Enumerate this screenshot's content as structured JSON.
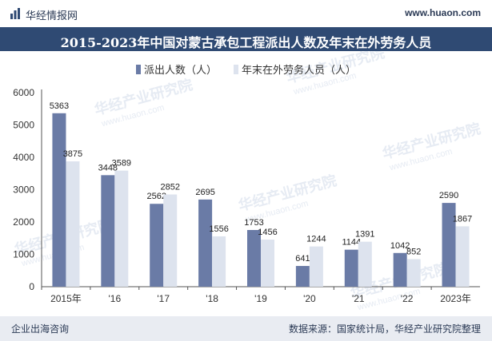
{
  "header": {
    "site_name": "华经情报网",
    "site_url": "www.huaon.com",
    "logo_icon": "bar-logo-icon"
  },
  "footer": {
    "left": "企业出海咨询",
    "right": "数据来源：国家统计局，华经产业研究院整理"
  },
  "watermark": {
    "text": "华经产业研究院",
    "url": "www.huaon.com"
  },
  "colors": {
    "series1": "#6a7ba6",
    "series2": "#dde3ee",
    "title_bg": "#2f4a73"
  },
  "chart_data": {
    "type": "bar",
    "title": "2015-2023年中国对蒙古承包工程派出人数及年末在外劳务人员",
    "categories": [
      "2015年",
      "'16",
      "'17",
      "'18",
      "'19",
      "'20",
      "'21",
      "'22",
      "2023年"
    ],
    "series": [
      {
        "name": "派出人数（人）",
        "values": [
          5363,
          3448,
          2562,
          2695,
          1753,
          641,
          1144,
          1042,
          2590
        ]
      },
      {
        "name": "年末在外劳务人员（人）",
        "values": [
          3875,
          3589,
          2852,
          1556,
          1456,
          1244,
          1391,
          852,
          1867
        ]
      }
    ],
    "ylim": [
      0,
      6000
    ],
    "yticks": [
      0,
      1000,
      2000,
      3000,
      4000,
      5000,
      6000
    ],
    "legend_position": "top-center",
    "grid": false
  }
}
